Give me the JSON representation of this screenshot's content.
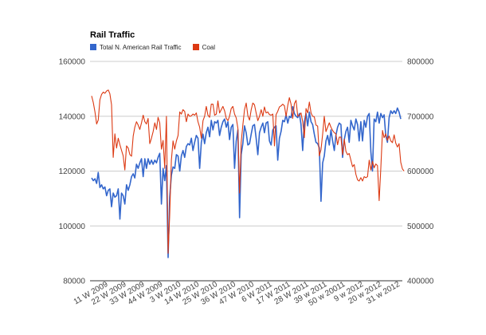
{
  "chart_data": {
    "type": "line",
    "title": "Rail Traffic",
    "legend_position": "top-left",
    "grid": true,
    "x_tick_labels": [
      "11 W 2009",
      "22 W 2009",
      "33 W 2009",
      "44 W 2009",
      "3 W 2010",
      "14 W 2010",
      "25 W 2010",
      "36 W 2010",
      "47 W 2010",
      "6 W 2011",
      "17 W 2011",
      "28 W 2011",
      "39 w 2011",
      "50 w 20011",
      "9 w 2012",
      "20 w 2012",
      "31 w 2012"
    ],
    "y_left": {
      "ticks": [
        "80000",
        "100000",
        "120000",
        "140000",
        "160000"
      ],
      "ylim": [
        80000,
        160000
      ]
    },
    "y_right": {
      "ticks": [
        "400000",
        "500000",
        "600000",
        "700000",
        "800000"
      ],
      "ylim": [
        400000,
        800000
      ]
    },
    "series": [
      {
        "name": "Total N. American Rail Traffic",
        "axis": "left",
        "color": "#3366cc",
        "values": [
          117500,
          116500,
          117200,
          115500,
          119500,
          114000,
          115000,
          113500,
          114200,
          111000,
          113000,
          113500,
          107000,
          112000,
          110500,
          111000,
          113500,
          102500,
          112000,
          111000,
          108000,
          115000,
          113000,
          115000,
          118000,
          119000,
          117500,
          122500,
          121000,
          123000,
          124500,
          118000,
          124500,
          121000,
          124500,
          122500,
          124000,
          122500,
          124000,
          123000,
          125000,
          126500,
          108000,
          121000,
          116500,
          122000,
          88500,
          110500,
          118500,
          121500,
          121000,
          126000,
          125500,
          120000,
          125500,
          127500,
          125000,
          129000,
          130000,
          129500,
          132000,
          127500,
          130500,
          133000,
          132000,
          121000,
          130500,
          133500,
          130000,
          134000,
          136000,
          132500,
          138500,
          135000,
          138000,
          137500,
          138500,
          133000,
          136000,
          138000,
          139000,
          136000,
          138000,
          131500,
          136000,
          137000,
          121000,
          131000,
          135000,
          103000,
          126000,
          130000,
          136500,
          134000,
          129500,
          130000,
          133500,
          136500,
          137000,
          132000,
          126000,
          134000,
          136000,
          137500,
          134000,
          137500,
          138000,
          131000,
          129500,
          135000,
          136000,
          136500,
          124000,
          132000,
          134500,
          138500,
          138000,
          140500,
          137500,
          140000,
          139500,
          143500,
          141000,
          140000,
          139500,
          141000,
          137000,
          127500,
          138000,
          141000,
          136500,
          141500,
          138000,
          137000,
          133500,
          130500,
          130000,
          128500,
          109000,
          123000,
          125500,
          131000,
          133000,
          129500,
          135000,
          131000,
          127500,
          133000,
          136000,
          137500,
          137000,
          125000,
          131500,
          134500,
          136000,
          130500,
          138500,
          136500,
          135000,
          139000,
          137000,
          131000,
          138000,
          131000,
          138500,
          136000,
          140000,
          141000,
          127000,
          120000,
          139000,
          138000,
          141500,
          137500,
          141000,
          139500,
          140500,
          133000,
          130500,
          139500,
          142000,
          141000,
          142000,
          141000,
          143000,
          141500,
          139000
        ]
      },
      {
        "name": "Coal",
        "axis": "right",
        "color": "#dc3912",
        "values": [
          737000,
          725000,
          708000,
          686000,
          693000,
          730000,
          740000,
          744000,
          742000,
          746000,
          748000,
          741000,
          721000,
          625000,
          668000,
          642000,
          660000,
          648000,
          638000,
          628000,
          602000,
          646000,
          642000,
          630000,
          627000,
          664000,
          680000,
          690000,
          684000,
          676000,
          688000,
          702000,
          690000,
          686000,
          696000,
          650000,
          660000,
          672000,
          688000,
          676000,
          698000,
          688000,
          640000,
          656000,
          605000,
          700000,
          450000,
          520000,
          620000,
          655000,
          640000,
          655000,
          665000,
          708000,
          704000,
          712000,
          709000,
          690000,
          704000,
          700000,
          701000,
          704000,
          702000,
          706000,
          690000,
          680000,
          660000,
          692000,
          700000,
          718000,
          702000,
          698000,
          722000,
          722000,
          702000,
          704000,
          728000,
          706000,
          712000,
          718000,
          710000,
          696000,
          692000,
          700000,
          714000,
          718000,
          704000,
          697000,
          678000,
          560000,
          652000,
          684000,
          712000,
          724000,
          701000,
          693000,
          712000,
          724000,
          721000,
          706000,
          692000,
          700000,
          712000,
          700000,
          717000,
          706000,
          708000,
          703000,
          702000,
          704000,
          646000,
          703000,
          709000,
          717000,
          719000,
          722000,
          719000,
          700000,
          720000,
          734000,
          722000,
          696000,
          723000,
          729000,
          700000,
          702000,
          706000,
          690000,
          661000,
          714000,
          706000,
          726000,
          706000,
          700000,
          699000,
          684000,
          682000,
          628000,
          639000,
          668000,
          700000,
          672000,
          680000,
          688000,
          680000,
          674000,
          670000,
          668000,
          648000,
          662000,
          662000,
          630000,
          658000,
          636000,
          630000,
          632000,
          620000,
          608000,
          612000,
          594000,
          584000,
          582000,
          588000,
          582000,
          590000,
          588000,
          590000,
          620000,
          602000,
          618000,
          606000,
          613000,
          610000,
          546000,
          606000,
          674000,
          661000,
          668000,
          656000,
          664000,
          655000,
          652000,
          666000,
          651000,
          644000,
          650000,
          616000,
          604000,
          600000
        ]
      }
    ]
  }
}
